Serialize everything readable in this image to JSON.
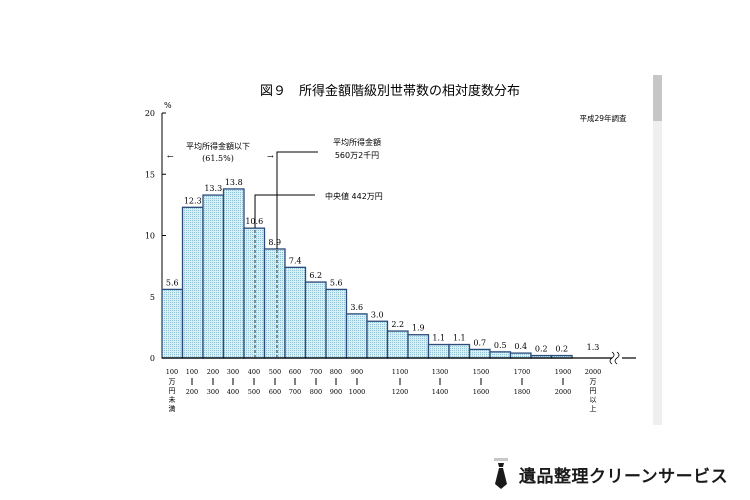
{
  "chart_data": {
    "type": "bar",
    "title": "図９　所得金額階級別世帯数の相対度数分布",
    "subtitle": "平成29年調査",
    "xlabel": "",
    "ylabel": "%",
    "ylim": [
      0,
      20
    ],
    "yticks": [
      0,
      5,
      10,
      15,
      20
    ],
    "grid": false,
    "categories": [
      "100万円未満",
      "100-200",
      "200-300",
      "300-400",
      "400-500",
      "500-600",
      "600-700",
      "700-800",
      "800-900",
      "900-1000",
      "1000-1100",
      "1100-1200",
      "1200-1300",
      "1300-1400",
      "1400-1500",
      "1500-1600",
      "1600-1700",
      "1700-1800",
      "1800-1900",
      "1900-2000",
      "2000万円以上"
    ],
    "values": [
      5.6,
      12.3,
      13.3,
      13.8,
      10.6,
      8.9,
      7.4,
      6.2,
      5.6,
      3.6,
      3.0,
      2.2,
      1.9,
      1.1,
      1.1,
      0.7,
      0.5,
      0.4,
      0.2,
      0.2,
      1.3
    ],
    "value_labels": [
      "5.6",
      "12.3",
      "13.3",
      "13.8",
      "10.6",
      "8.9",
      "7.4",
      "6.2",
      "5.6",
      "3.6",
      "3.0",
      "2.2",
      "1.9",
      "1.1",
      "1.1",
      "0.7",
      "0.5",
      "0.4",
      "0.2",
      "0.2",
      "1.3"
    ],
    "xtick_labels": [
      {
        "top": "100",
        "bottom": "万円未満",
        "vertical": true
      },
      {
        "top": "100",
        "bottom": "200"
      },
      {
        "top": "200",
        "bottom": "300"
      },
      {
        "top": "300",
        "bottom": "400"
      },
      {
        "top": "400",
        "bottom": "500"
      },
      {
        "top": "500",
        "bottom": "600"
      },
      {
        "top": "600",
        "bottom": "700"
      },
      {
        "top": "700",
        "bottom": "800"
      },
      {
        "top": "800",
        "bottom": "900"
      },
      {
        "top": "900",
        "bottom": "1000"
      },
      {
        "top": "1100",
        "bottom": "1200"
      },
      {
        "top": "1300",
        "bottom": "1400"
      },
      {
        "top": "1500",
        "bottom": "1600"
      },
      {
        "top": "1700",
        "bottom": "1800"
      },
      {
        "top": "1900",
        "bottom": "2000"
      },
      {
        "top": "2000",
        "bottom": "万円以上",
        "vertical": true
      }
    ],
    "annotations": {
      "below_mean_label": "平均所得金額以下",
      "below_mean_pct": "(61.5%)",
      "mean_label": "平均所得金額",
      "mean_value": "560万2千円",
      "median_label": "中央値",
      "median_value": "442万円"
    },
    "colors": {
      "bar_fill": "#d3ecf3",
      "bar_dot": "#8fc6d8",
      "bar_edge": "#2c4a7a",
      "axis": "#000000"
    }
  },
  "scrollbar": {
    "thumb_pct": 13
  },
  "brand": {
    "name": "遺品整理クリーンサービス"
  }
}
